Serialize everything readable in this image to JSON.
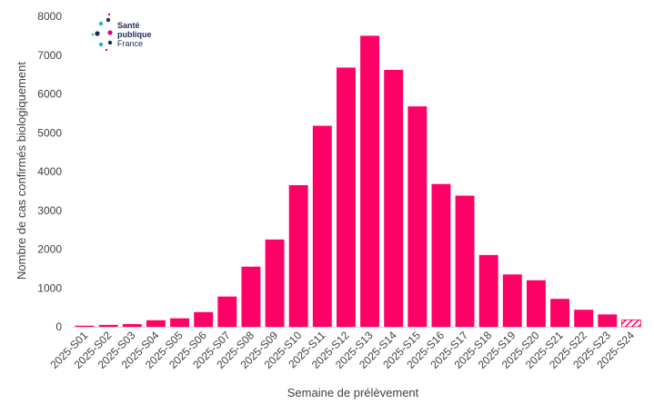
{
  "logo": {
    "line1": "Santé",
    "line2": "publique",
    "line3": "France",
    "dot_colors": [
      "#1fb5c4",
      "#1d2b5a",
      "#e6007e",
      "#1d2b5a",
      "#1fb5c4",
      "#e6007e"
    ]
  },
  "chart_data": {
    "type": "bar",
    "xlabel": "Semaine de prélèvement",
    "ylabel": "Nombre de cas confirmés biologiquement",
    "ylim": [
      0,
      8000
    ],
    "yticks": [
      0,
      1000,
      2000,
      3000,
      4000,
      5000,
      6000,
      7000,
      8000
    ],
    "grid": false,
    "bar_color": "#ff0066",
    "partial_last_bar": true,
    "categories": [
      "2025-S01",
      "2025-S02",
      "2025-S03",
      "2025-S04",
      "2025-S05",
      "2025-S06",
      "2025-S07",
      "2025-S08",
      "2025-S09",
      "2025-S10",
      "2025-S11",
      "2025-S12",
      "2025-S13",
      "2025-S14",
      "2025-S15",
      "2025-S16",
      "2025-S17",
      "2025-S18",
      "2025-S19",
      "2025-S20",
      "2025-S21",
      "2025-S22",
      "2025-S23",
      "2025-S24"
    ],
    "values": [
      30,
      50,
      70,
      170,
      220,
      380,
      780,
      1550,
      2250,
      3650,
      5180,
      6680,
      7500,
      6620,
      5680,
      3680,
      3380,
      1850,
      1350,
      1200,
      720,
      440,
      320,
      180
    ]
  }
}
